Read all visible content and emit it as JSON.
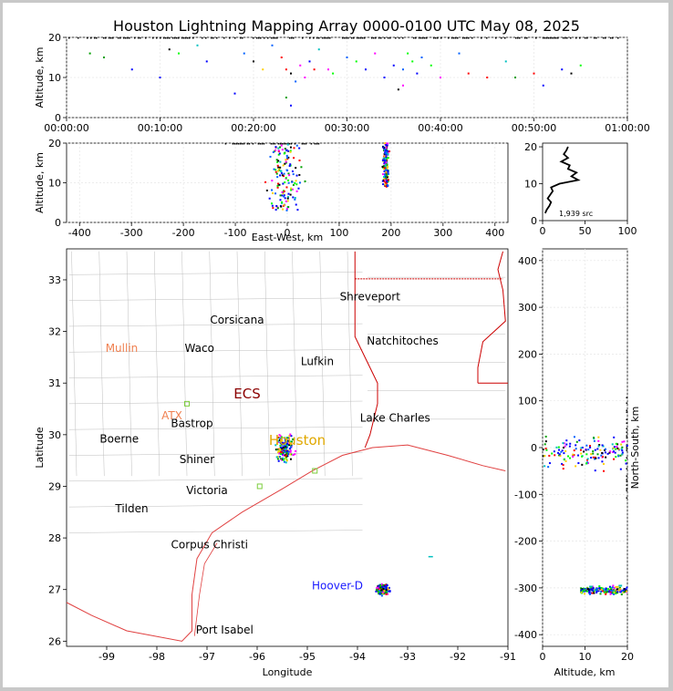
{
  "title": "Houston Lightning Mapping Array 0000-0100 UTC May 08, 2025",
  "colors": {
    "frame": "#c8c8c8",
    "state_border": "#cc0000",
    "coast": "#e04040",
    "county": "#bdbdbd",
    "grid": "#e6e6e6"
  },
  "chart_data": [
    {
      "panel": "altitude-time",
      "type": "scatter",
      "ylabel": "Altitude, km",
      "xlabel": "",
      "xticks": [
        "00:00:00",
        "00:10:00",
        "00:20:00",
        "00:30:00",
        "00:40:00",
        "00:50:00",
        "01:00:00"
      ],
      "xlim_minutes": [
        0,
        60
      ],
      "ylim": [
        0,
        20
      ],
      "yticks": [
        0,
        10,
        20
      ],
      "grid": true,
      "points": [
        {
          "x": 2.5,
          "y": 16
        },
        {
          "x": 4,
          "y": 15
        },
        {
          "x": 7,
          "y": 12
        },
        {
          "x": 10,
          "y": 10
        },
        {
          "x": 11,
          "y": 17
        },
        {
          "x": 12,
          "y": 16
        },
        {
          "x": 14,
          "y": 18
        },
        {
          "x": 15,
          "y": 14
        },
        {
          "x": 18,
          "y": 6
        },
        {
          "x": 19,
          "y": 16
        },
        {
          "x": 20,
          "y": 14
        },
        {
          "x": 21,
          "y": 12
        },
        {
          "x": 22,
          "y": 18
        },
        {
          "x": 23,
          "y": 15
        },
        {
          "x": 23.5,
          "y": 12
        },
        {
          "x": 24,
          "y": 11
        },
        {
          "x": 24.5,
          "y": 9
        },
        {
          "x": 25,
          "y": 13
        },
        {
          "x": 25.5,
          "y": 10
        },
        {
          "x": 26,
          "y": 14
        },
        {
          "x": 26.5,
          "y": 12
        },
        {
          "x": 27,
          "y": 17
        },
        {
          "x": 28,
          "y": 12
        },
        {
          "x": 28.5,
          "y": 11
        },
        {
          "x": 30,
          "y": 15
        },
        {
          "x": 31,
          "y": 14
        },
        {
          "x": 32,
          "y": 12
        },
        {
          "x": 33,
          "y": 16
        },
        {
          "x": 34,
          "y": 10
        },
        {
          "x": 35,
          "y": 13
        },
        {
          "x": 36,
          "y": 12
        },
        {
          "x": 36.5,
          "y": 16
        },
        {
          "x": 37,
          "y": 14
        },
        {
          "x": 37.5,
          "y": 11
        },
        {
          "x": 38,
          "y": 15
        },
        {
          "x": 39,
          "y": 13
        },
        {
          "x": 40,
          "y": 10
        },
        {
          "x": 42,
          "y": 16
        },
        {
          "x": 43,
          "y": 11
        },
        {
          "x": 45,
          "y": 10
        },
        {
          "x": 47,
          "y": 14
        },
        {
          "x": 48,
          "y": 10
        },
        {
          "x": 50,
          "y": 11
        },
        {
          "x": 51,
          "y": 8
        },
        {
          "x": 53,
          "y": 12
        },
        {
          "x": 54,
          "y": 11
        },
        {
          "x": 55,
          "y": 13
        },
        {
          "x": 35.5,
          "y": 7
        },
        {
          "x": 36,
          "y": 8
        },
        {
          "x": 23.5,
          "y": 5
        },
        {
          "x": 24,
          "y": 3
        }
      ]
    },
    {
      "panel": "altitude-eastwest",
      "type": "scatter",
      "xlabel": "East-West, km",
      "ylabel": "Altitude, km",
      "xlim": [
        -425,
        425
      ],
      "ylim": [
        0,
        20
      ],
      "xticks": [
        -400,
        -300,
        -200,
        -100,
        0,
        100,
        200,
        300,
        400
      ],
      "yticks": [
        0,
        10,
        20
      ],
      "grid": true,
      "clusters": [
        {
          "center_x": -5,
          "spread_x": 45,
          "y_range": [
            3,
            20
          ],
          "count": 150
        },
        {
          "center_x": 190,
          "spread_x": 8,
          "y_range": [
            9,
            20
          ],
          "count": 190
        }
      ]
    },
    {
      "panel": "source-histogram",
      "type": "line",
      "xlim": [
        0,
        100
      ],
      "ylim": [
        0,
        21
      ],
      "xticks": [
        0,
        50,
        100
      ],
      "yticks": [
        0,
        10,
        20
      ],
      "annotation": "1,939 src",
      "profile": [
        {
          "alt": 2,
          "count": 3
        },
        {
          "alt": 3,
          "count": 5
        },
        {
          "alt": 4,
          "count": 8
        },
        {
          "alt": 5,
          "count": 10
        },
        {
          "alt": 6,
          "count": 6
        },
        {
          "alt": 7,
          "count": 9
        },
        {
          "alt": 8,
          "count": 12
        },
        {
          "alt": 9,
          "count": 10
        },
        {
          "alt": 10,
          "count": 20
        },
        {
          "alt": 11,
          "count": 42
        },
        {
          "alt": 12,
          "count": 34
        },
        {
          "alt": 13,
          "count": 40
        },
        {
          "alt": 14,
          "count": 30
        },
        {
          "alt": 15,
          "count": 32
        },
        {
          "alt": 16,
          "count": 22
        },
        {
          "alt": 17,
          "count": 30
        },
        {
          "alt": 18,
          "count": 25
        },
        {
          "alt": 19,
          "count": 28
        },
        {
          "alt": 20,
          "count": 30
        }
      ]
    },
    {
      "panel": "plan-view",
      "type": "scatter",
      "xlabel": "Longitude",
      "ylabel": "Latitude",
      "xlim": [
        -99.8,
        -91
      ],
      "ylim": [
        25.9,
        33.6
      ],
      "xticks": [
        -99,
        -98,
        -97,
        -96,
        -95,
        -94,
        -93,
        -92,
        -91
      ],
      "yticks": [
        26,
        27,
        28,
        29,
        30,
        31,
        32,
        33
      ],
      "clusters": [
        {
          "center_lon": -95.45,
          "center_lat": 29.7,
          "spread_lon": 0.25,
          "spread_lat": 0.4,
          "count": 170
        },
        {
          "center_lon": -93.5,
          "center_lat": 27.0,
          "spread_lon": 0.18,
          "spread_lat": 0.14,
          "count": 180
        }
      ],
      "cities": [
        {
          "name": "Shreveport",
          "lon": -93.75,
          "lat": 32.6,
          "color": "#000000"
        },
        {
          "name": "Corsicana",
          "lon": -96.4,
          "lat": 32.15,
          "color": "#000000"
        },
        {
          "name": "Mullin",
          "lon": -98.7,
          "lat": 31.6,
          "color": "#f08050"
        },
        {
          "name": "Waco",
          "lon": -97.15,
          "lat": 31.6,
          "color": "#000000"
        },
        {
          "name": "Natchitoches",
          "lon": -93.1,
          "lat": 31.75,
          "color": "#000000"
        },
        {
          "name": "Lufkin",
          "lon": -94.8,
          "lat": 31.35,
          "color": "#000000"
        },
        {
          "name": "ECS",
          "lon": -96.2,
          "lat": 30.7,
          "color": "#8b0000"
        },
        {
          "name": "ATX",
          "lon": -97.7,
          "lat": 30.3,
          "color": "#f08050"
        },
        {
          "name": "Bastrop",
          "lon": -97.3,
          "lat": 30.15,
          "color": "#000000"
        },
        {
          "name": "Lake Charles",
          "lon": -93.25,
          "lat": 30.25,
          "color": "#000000"
        },
        {
          "name": "Boerne",
          "lon": -98.75,
          "lat": 29.85,
          "color": "#000000"
        },
        {
          "name": "Houston",
          "lon": -95.2,
          "lat": 29.8,
          "color": "#e0a800"
        },
        {
          "name": "Shiner",
          "lon": -97.2,
          "lat": 29.45,
          "color": "#000000"
        },
        {
          "name": "Victoria",
          "lon": -97.0,
          "lat": 28.85,
          "color": "#000000"
        },
        {
          "name": "Tilden",
          "lon": -98.5,
          "lat": 28.5,
          "color": "#000000"
        },
        {
          "name": "Corpus Christi",
          "lon": -96.95,
          "lat": 27.8,
          "color": "#000000"
        },
        {
          "name": "Hoover-D",
          "lon": -94.4,
          "lat": 27.0,
          "color": "#1a1aff"
        },
        {
          "name": "Port Isabel",
          "lon": -96.65,
          "lat": 26.15,
          "color": "#000000"
        }
      ]
    },
    {
      "panel": "northsouth-altitude",
      "type": "scatter",
      "xlabel": "Altitude, km",
      "ylabel": "North-South, km",
      "xlim": [
        0,
        20
      ],
      "ylim": [
        -425,
        425
      ],
      "xticks": [
        0,
        10,
        20
      ],
      "yticks": [
        -400,
        -300,
        -200,
        -100,
        0,
        100,
        200,
        300,
        400
      ],
      "grid": true,
      "clusters": [
        {
          "center_y": -10,
          "spread_y": 45,
          "x_range": [
            0,
            20
          ],
          "count": 150
        },
        {
          "center_y": -305,
          "spread_y": 12,
          "x_range": [
            9,
            20
          ],
          "count": 190
        }
      ]
    }
  ]
}
